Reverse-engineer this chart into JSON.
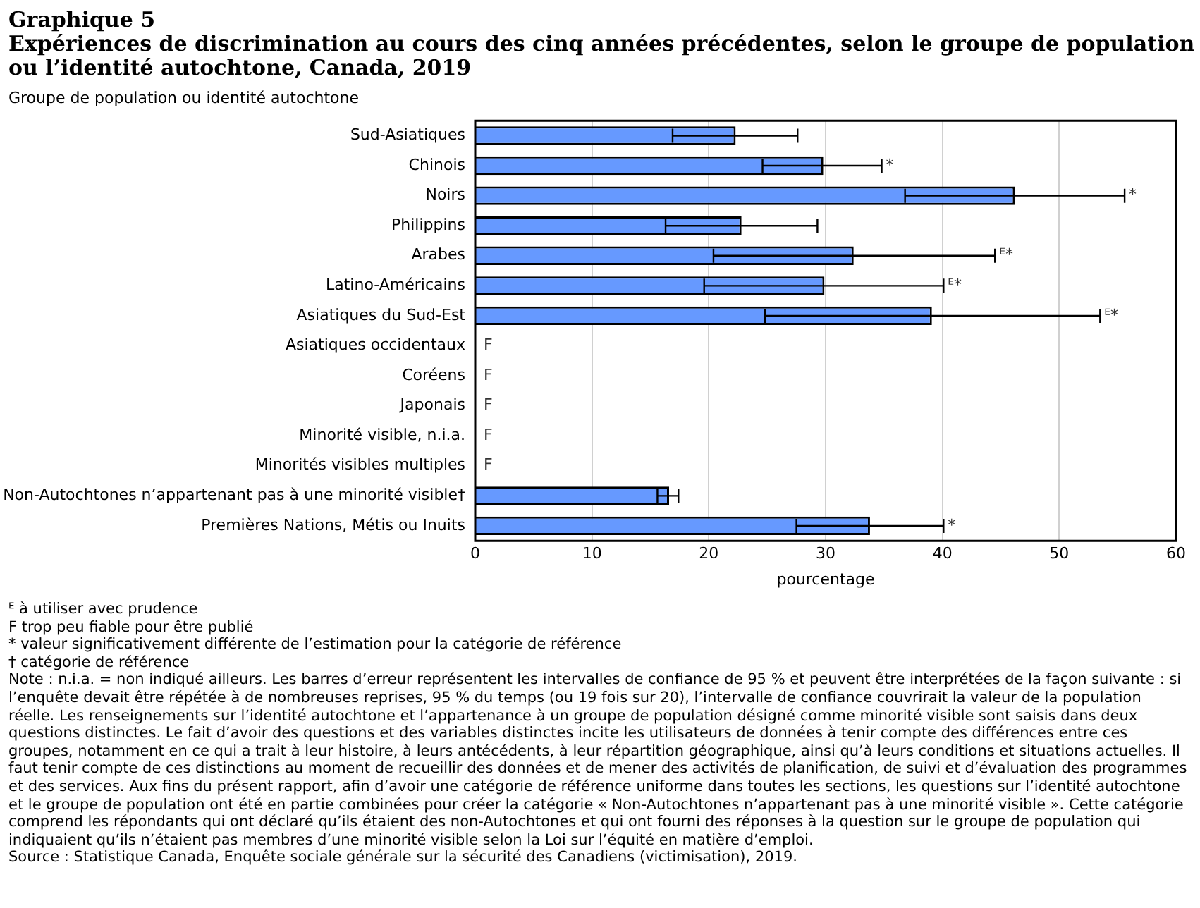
{
  "chart_data": {
    "type": "bar",
    "orientation": "horizontal",
    "title": "Graphique 5",
    "subtitle": "Expériences de discrimination  au cours des cinq années précédentes, selon le groupe de population ou l’identité autochtone, Canada, 2019",
    "ylabel": "Groupe de population ou identité autochtone",
    "xlabel": "pourcentage",
    "categories": [
      "Sud-Asiatiques",
      "Chinois",
      "Noirs",
      "Philippins",
      "Arabes",
      "Latino-Américains",
      "Asiatiques du Sud-Est",
      "Asiatiques occidentaux",
      "Coréens",
      "Japonais",
      "Minorité visible, n.i.a.",
      "Minorités visibles multiples",
      "Non-Autochtones n’appartenant pas à une minorité visible†",
      "Premières Nations, Métis ou Inuits"
    ],
    "values": [
      22.3,
      29.8,
      46.2,
      22.8,
      32.4,
      29.9,
      39.1,
      null,
      null,
      null,
      null,
      null,
      16.6,
      33.8
    ],
    "errors": [
      [
        16.9,
        27.6
      ],
      [
        24.6,
        34.8
      ],
      [
        36.8,
        55.6
      ],
      [
        16.3,
        29.3
      ],
      [
        20.4,
        44.5
      ],
      [
        19.6,
        40.1
      ],
      [
        24.8,
        53.5
      ],
      null,
      null,
      null,
      null,
      null,
      [
        15.6,
        17.4
      ],
      [
        27.5,
        40.1
      ]
    ],
    "value_labels": [
      null,
      null,
      null,
      null,
      null,
      null,
      null,
      "F",
      "F",
      "F",
      "F",
      "F",
      null,
      null
    ],
    "color": "#6699ff",
    "xlim": [
      0,
      60
    ],
    "xticks": [
      0,
      10,
      20,
      30,
      40,
      50,
      60
    ],
    "grid": "x",
    "legend": false,
    "annotations": [
      {
        "text": "*",
        "x": 34.8,
        "y": "Chinois"
      },
      {
        "text": "*",
        "x": 55.6,
        "y": "Noirs"
      },
      {
        "text": "ᴱ*",
        "x": 44.5,
        "y": "Arabes"
      },
      {
        "text": "ᴱ*",
        "x": 40.1,
        "y": "Latino-Américains"
      },
      {
        "text": "ᴱ*",
        "x": 53.5,
        "y": "Asiatiques du Sud-Est"
      },
      {
        "text": "*",
        "x": 40.1,
        "y": "Premières Nations, Métis ou Inuits"
      },
      "ᴱ à utiliser avec prudence",
      "F trop peu fiable pour être publié",
      "* valeur significativement différente de l’estimation pour la catégorie de référence",
      "† catégorie de référence",
      "Note : n.i.a. = non indiqué ailleurs. Les barres d’erreur représentent les intervalles de confiance de 95 % et peuvent être interprétées de la façon suivante : si l’enquête devait être répétée à de nombreuses reprises, 95 % du temps (ou 19 fois sur 20), l’intervalle de confiance couvrirait la valeur de la population réelle. Les renseignements sur l’identité autochtone et l’appartenance à un groupe de population désigné comme minorité visible sont saisis dans deux questions distinctes. Le fait d’avoir des questions et des variables distinctes incite les utilisateurs de données à tenir compte des différences entre ces groupes, notamment en ce qui a trait à leur histoire, à leurs antécédents, à leur répartition géographique, ainsi qu’à leurs conditions et situations actuelles. Il faut tenir compte de ces distinctions au moment de recueillir des données et de mener des activités de planification, de suivi et d’évaluation des programmes et des services. Aux fins du présent rapport, afin d’avoir une catégorie de référence uniforme dans toutes les sections, les questions sur l’identité autochtone et le groupe de population ont été en partie combinées pour créer la catégorie « Non-Autochtones n’appartenant pas à une minorité visible ». Cette catégorie comprend les répondants qui ont déclaré qu’ils étaient des non-Autochtones et qui ont fourni des réponses à la question sur le groupe de population qui indiquaient qu’ils n’étaient pas membres d’une minorité visible selon la Loi sur l’équité en matière d’emploi.",
      "Source : Statistique Canada, Enquête sociale générale sur la sécurité des Canadiens (victimisation), 2019."
    ]
  }
}
